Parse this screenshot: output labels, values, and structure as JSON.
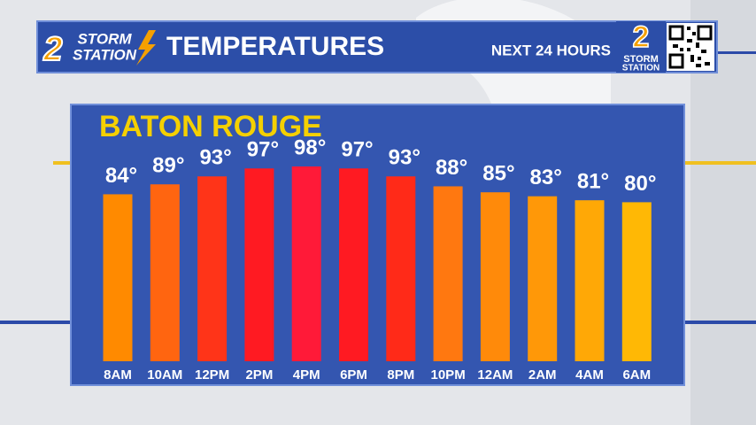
{
  "header": {
    "logo_number": "2",
    "logo_line1": "STORM",
    "logo_line2": "STATION",
    "title": "TEMPERATURES",
    "subtitle": "NEXT 24 HOURS"
  },
  "chart_data": {
    "type": "bar",
    "title": "BATON ROUGE",
    "categories": [
      "8AM",
      "10AM",
      "12PM",
      "2PM",
      "4PM",
      "6PM",
      "8PM",
      "10PM",
      "12AM",
      "2AM",
      "4AM",
      "6AM"
    ],
    "values": [
      84,
      89,
      93,
      97,
      98,
      97,
      93,
      88,
      85,
      83,
      81,
      80
    ],
    "value_labels": [
      "84°",
      "89°",
      "93°",
      "97°",
      "98°",
      "97°",
      "93°",
      "88°",
      "85°",
      "83°",
      "81°",
      "80°"
    ],
    "colors": [
      "#ff8a00",
      "#ff6510",
      "#ff3418",
      "#ff1a22",
      "#ff1a38",
      "#ff1a22",
      "#ff2a18",
      "#ff7810",
      "#ff8a0a",
      "#ff9808",
      "#ffa806",
      "#ffb805"
    ]
  }
}
